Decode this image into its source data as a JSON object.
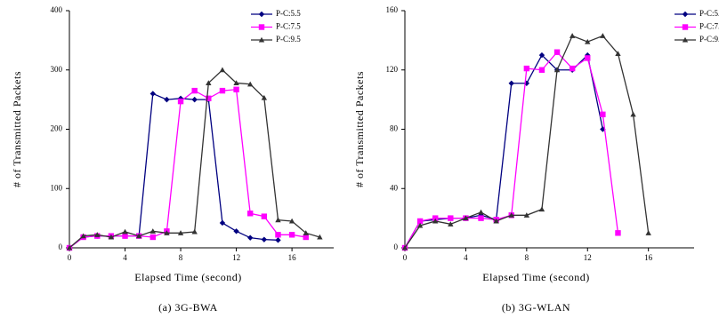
{
  "chart_data": [
    {
      "type": "line",
      "caption": "(a) 3G-BWA",
      "x_label": "Elapsed Time (second)",
      "y_label": "# of Transmitted Packets",
      "x": [
        0,
        1,
        2,
        3,
        4,
        5,
        6,
        7,
        8,
        9,
        10,
        11,
        12,
        13,
        14,
        15,
        16,
        17,
        18
      ],
      "xlim": [
        0,
        19
      ],
      "xticks": [
        0,
        4,
        8,
        12,
        16
      ],
      "ylim": [
        0,
        400
      ],
      "yticks": [
        0,
        100,
        200,
        300,
        400
      ],
      "legend": "top-right",
      "series": [
        {
          "name": "P-C:5.5",
          "color": "#000080",
          "marker": "diamond",
          "values": [
            0,
            18,
            20,
            20,
            20,
            20,
            260,
            250,
            252,
            250,
            250,
            42,
            28,
            17,
            14,
            13,
            null,
            null,
            null
          ]
        },
        {
          "name": "P-C:7.5",
          "color": "#ff00ff",
          "marker": "square",
          "values": [
            0,
            18,
            20,
            20,
            20,
            20,
            18,
            28,
            247,
            265,
            252,
            265,
            267,
            58,
            53,
            22,
            22,
            18,
            null
          ]
        },
        {
          "name": "P-C:9.5",
          "color": "#333333",
          "marker": "triangle",
          "values": [
            0,
            20,
            22,
            18,
            27,
            20,
            28,
            25,
            25,
            27,
            278,
            300,
            278,
            276,
            253,
            47,
            45,
            25,
            18
          ]
        }
      ]
    },
    {
      "type": "line",
      "caption": "(b) 3G-WLAN",
      "x_label": "Elapsed Time (second)",
      "y_label": "# of Transmitted Packets",
      "x": [
        0,
        1,
        2,
        3,
        4,
        5,
        6,
        7,
        8,
        9,
        10,
        11,
        12,
        13,
        14,
        15,
        16
      ],
      "xlim": [
        0,
        19
      ],
      "xticks": [
        0,
        4,
        8,
        12,
        16
      ],
      "ylim": [
        0,
        160
      ],
      "yticks": [
        0,
        40,
        80,
        120,
        160
      ],
      "legend": "top-right",
      "series": [
        {
          "name": "P-C:5.5",
          "color": "#000080",
          "marker": "diamond",
          "values": [
            0,
            18,
            19,
            20,
            20,
            22,
            19,
            111,
            111,
            130,
            120,
            120,
            130,
            80,
            null,
            null,
            null
          ]
        },
        {
          "name": "P-C:7.5",
          "color": "#ff00ff",
          "marker": "square",
          "values": [
            0,
            18,
            20,
            20,
            20,
            20,
            19,
            22,
            121,
            120,
            132,
            121,
            128,
            90,
            10,
            null,
            null
          ]
        },
        {
          "name": "P-C:9.5",
          "color": "#333333",
          "marker": "triangle",
          "values": [
            0,
            15,
            18,
            16,
            20,
            24,
            18,
            22,
            22,
            26,
            120,
            143,
            139,
            143,
            131,
            90,
            10
          ]
        }
      ]
    }
  ]
}
